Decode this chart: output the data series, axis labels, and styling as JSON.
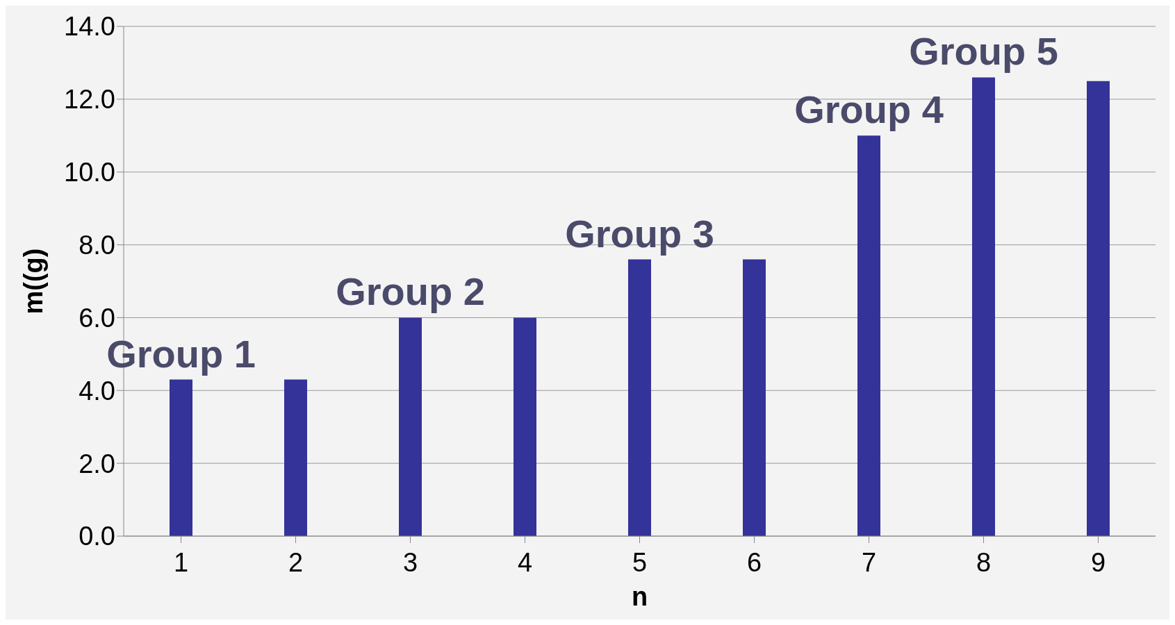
{
  "chart_data": {
    "type": "bar",
    "xlabel": "n",
    "ylabel": "m((g)",
    "categories": [
      "1",
      "2",
      "3",
      "4",
      "5",
      "6",
      "7",
      "8",
      "9"
    ],
    "values": [
      4.3,
      4.3,
      6.0,
      6.0,
      7.6,
      7.6,
      11.0,
      12.6,
      12.5
    ],
    "color": "#333399",
    "ylim": [
      0,
      14
    ],
    "yticks": [
      {
        "value": 0,
        "label": "0.0"
      },
      {
        "value": 2,
        "label": "2.0"
      },
      {
        "value": 4,
        "label": "4.0"
      },
      {
        "value": 6,
        "label": "6.0"
      },
      {
        "value": 8,
        "label": "8.0"
      },
      {
        "value": 10,
        "label": "10.0"
      },
      {
        "value": 12,
        "label": "12.0"
      },
      {
        "value": 14,
        "label": "14.0"
      }
    ],
    "grid": "y",
    "annotations": [
      {
        "text": "Group 1",
        "x": "1",
        "y": 4.3
      },
      {
        "text": "Group 2",
        "x": "3",
        "y": 6.0
      },
      {
        "text": "Group 3",
        "x": "5",
        "y": 7.6
      },
      {
        "text": "Group 4",
        "x": "7",
        "y": 11.0
      },
      {
        "text": "Group 5",
        "x": "8",
        "y": 12.6
      }
    ]
  }
}
